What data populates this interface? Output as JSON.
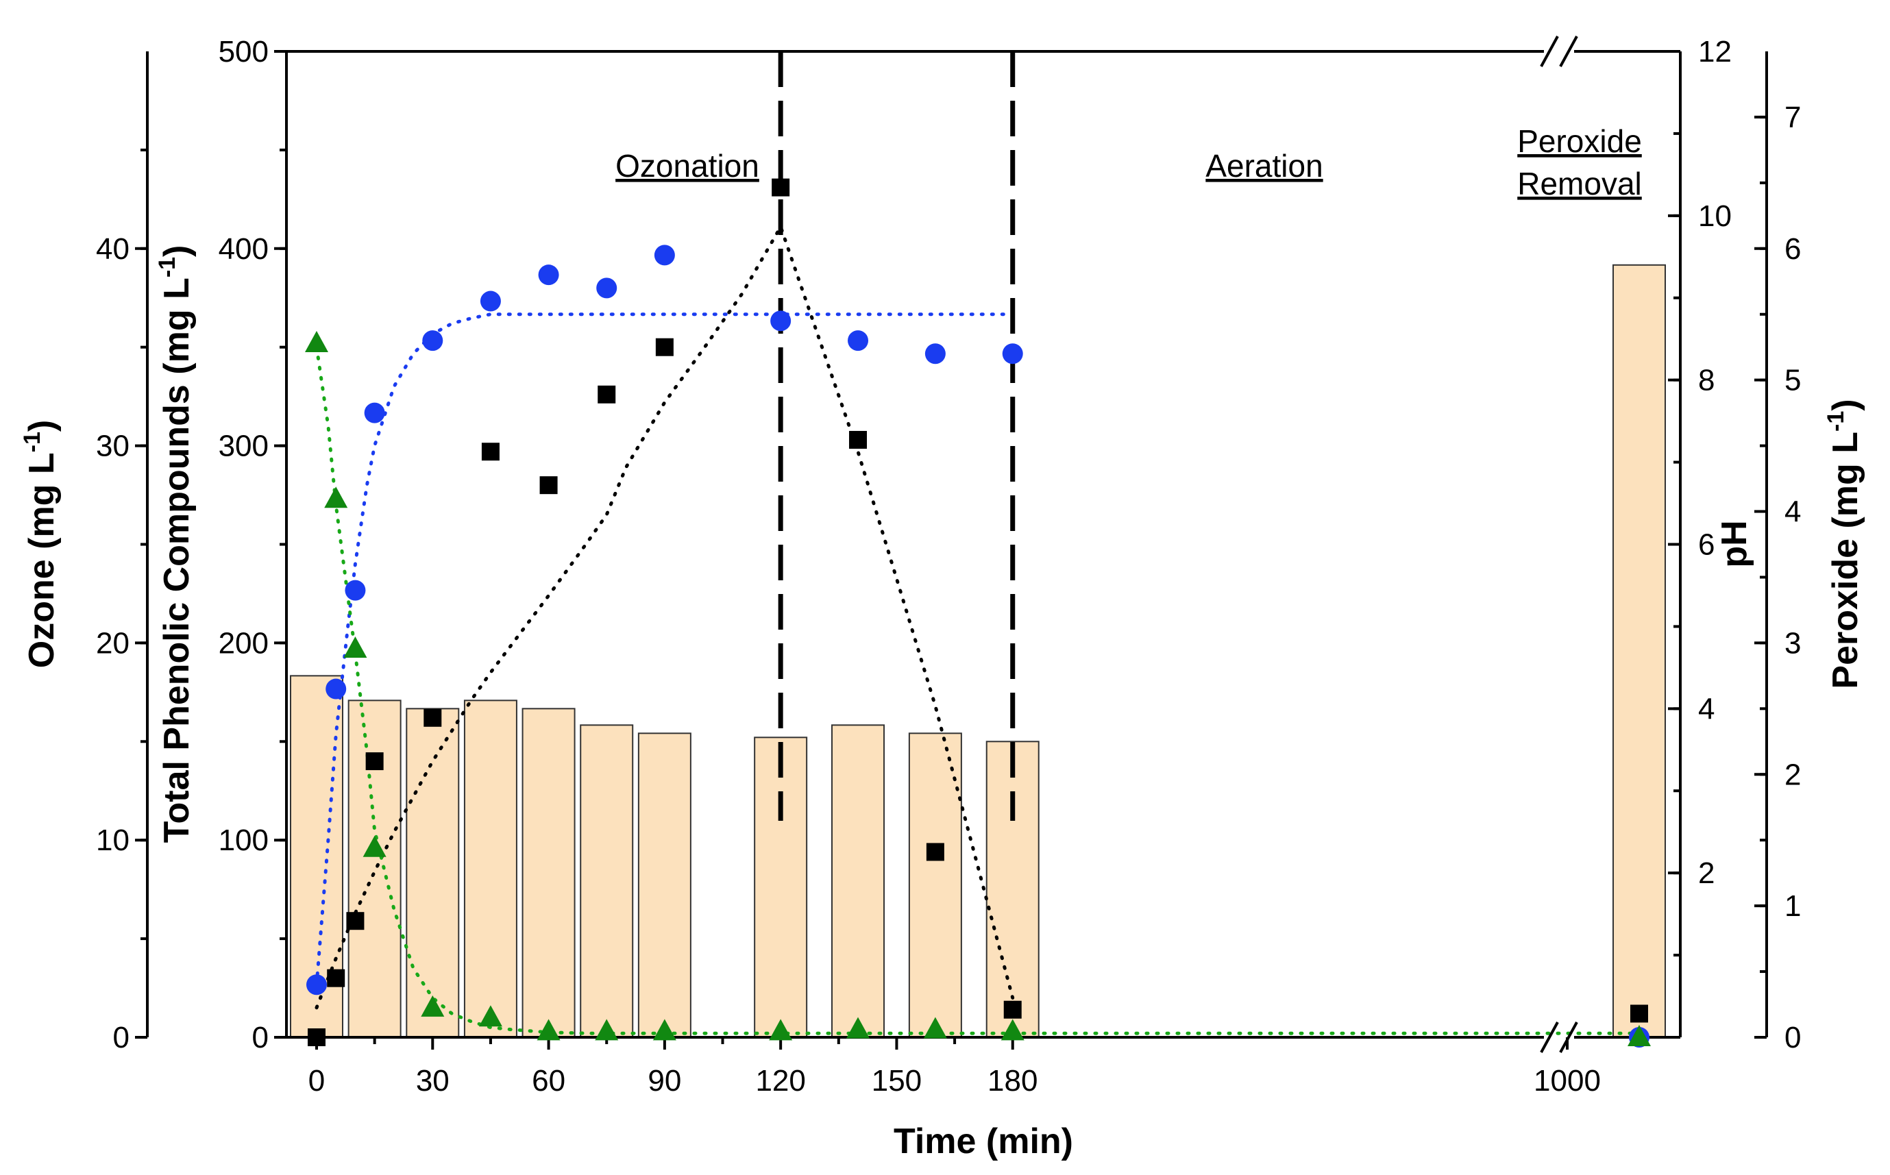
{
  "chart_data": {
    "type": "bar+scatter",
    "title": "",
    "xlabel": "Time (min)",
    "x_ticks": [
      "0",
      "30",
      "60",
      "90",
      "120",
      "150",
      "180",
      "1000"
    ],
    "x_break": {
      "from": 180,
      "to": 1000,
      "display_value_after_break": 1000
    },
    "phase_labels": [
      "Ozonation",
      "Aeration",
      "Peroxide",
      "Removal"
    ],
    "phase_boundaries": [
      120,
      180
    ],
    "axes": {
      "phenolic": {
        "title": "Total Phenolic Compounds (mg L",
        "superscript": "-1",
        "title_suffix": ")",
        "range": [
          0,
          500
        ],
        "ticks": [
          "0",
          "100",
          "200",
          "300",
          "400",
          "500"
        ],
        "side": "left-inner"
      },
      "ozone": {
        "title": "Ozone (mg L",
        "superscript": "-1",
        "title_suffix": ")",
        "range": [
          0,
          50
        ],
        "ticks": [
          "0",
          "10",
          "20",
          "30",
          "40"
        ],
        "side": "left-outer"
      },
      "ph": {
        "title": "pH",
        "range": [
          0,
          12
        ],
        "ticks": [
          "2",
          "4",
          "6",
          "8",
          "10",
          "12"
        ],
        "side": "right-inner"
      },
      "peroxide": {
        "title": "Peroxide (mg L",
        "superscript": "-1",
        "title_suffix": ")",
        "range": [
          0,
          7.5
        ],
        "ticks": [
          "0",
          "1",
          "2",
          "3",
          "4",
          "5",
          "6",
          "7"
        ],
        "side": "right-outer"
      }
    },
    "series": [
      {
        "name": "pH",
        "kind": "bar",
        "axis": "ph",
        "color": "#fce1bd",
        "x": [
          0,
          15,
          30,
          45,
          60,
          75,
          90,
          120,
          140,
          160,
          180,
          1000
        ],
        "values": [
          4.4,
          4.1,
          4.0,
          4.1,
          4.0,
          3.8,
          3.7,
          3.65,
          3.8,
          3.7,
          3.6,
          9.4
        ]
      },
      {
        "name": "Total Phenolic Compounds",
        "kind": "scatter",
        "marker": "square",
        "axis": "phenolic",
        "color": "#000000",
        "x": [
          0,
          5,
          10,
          15,
          30,
          45,
          60,
          75,
          90,
          120,
          140,
          160,
          180,
          1000
        ],
        "values": [
          0,
          30,
          59,
          140,
          162,
          297,
          280,
          326,
          350,
          431,
          303,
          94,
          14,
          12
        ]
      },
      {
        "name": "Peroxide",
        "kind": "scatter",
        "marker": "circle",
        "axis": "peroxide",
        "color": "#1a3cf0",
        "x": [
          0,
          5,
          10,
          15,
          30,
          45,
          60,
          75,
          90,
          120,
          140,
          160,
          180,
          1000
        ],
        "values": [
          0.4,
          2.65,
          3.4,
          4.75,
          5.3,
          5.6,
          5.8,
          5.7,
          5.95,
          5.45,
          5.3,
          5.2,
          5.2,
          0
        ]
      },
      {
        "name": "Ozone",
        "kind": "scatter",
        "marker": "triangle",
        "axis": "ozone",
        "color": "#118811",
        "x": [
          0,
          5,
          10,
          15,
          30,
          45,
          60,
          75,
          90,
          120,
          140,
          160,
          180,
          1000
        ],
        "values": [
          35.2,
          27.3,
          19.7,
          9.6,
          1.5,
          1.0,
          0.3,
          0.3,
          0.3,
          0.3,
          0.4,
          0.4,
          0.3,
          0
        ]
      }
    ],
    "trend_lines": [
      {
        "name": "phenolic-trend",
        "axis": "phenolic",
        "color": "#000000",
        "x": [
          0,
          5,
          10,
          15,
          20,
          30,
          40,
          45,
          50,
          60,
          70,
          75,
          80,
          90,
          100,
          110,
          120,
          140,
          160,
          180
        ],
        "values": [
          15,
          40,
          63,
          84,
          104,
          140,
          171,
          185,
          198,
          224,
          251,
          265,
          289,
          322,
          349,
          377,
          411,
          297,
          168,
          20
        ]
      },
      {
        "name": "peroxide-trend",
        "axis": "peroxide",
        "color": "#1a3cf0",
        "x": [
          0,
          3,
          5,
          8,
          10,
          13,
          15,
          20,
          25,
          30,
          35,
          40,
          45,
          50,
          60,
          70,
          80,
          90,
          100,
          120,
          140,
          160,
          180
        ],
        "values": [
          0.4,
          1.5,
          2.3,
          3.1,
          3.6,
          4.2,
          4.5,
          4.95,
          5.2,
          5.35,
          5.43,
          5.47,
          5.5,
          5.5,
          5.5,
          5.5,
          5.5,
          5.5,
          5.5,
          5.5,
          5.5,
          5.5,
          5.5
        ]
      },
      {
        "name": "ozone-trend",
        "axis": "ozone",
        "color": "#18a818",
        "x": [
          0,
          3,
          5,
          8,
          10,
          13,
          15,
          20,
          25,
          30,
          35,
          40,
          45,
          50,
          60,
          70,
          80,
          90,
          100,
          120,
          140,
          160,
          180,
          1000
        ],
        "values": [
          35,
          31,
          27,
          22.5,
          19.5,
          14.5,
          10.5,
          6.5,
          3.5,
          2.0,
          1.2,
          0.8,
          0.5,
          0.4,
          0.25,
          0.2,
          0.2,
          0.2,
          0.2,
          0.2,
          0.2,
          0.2,
          0.2,
          0.2
        ]
      }
    ]
  }
}
